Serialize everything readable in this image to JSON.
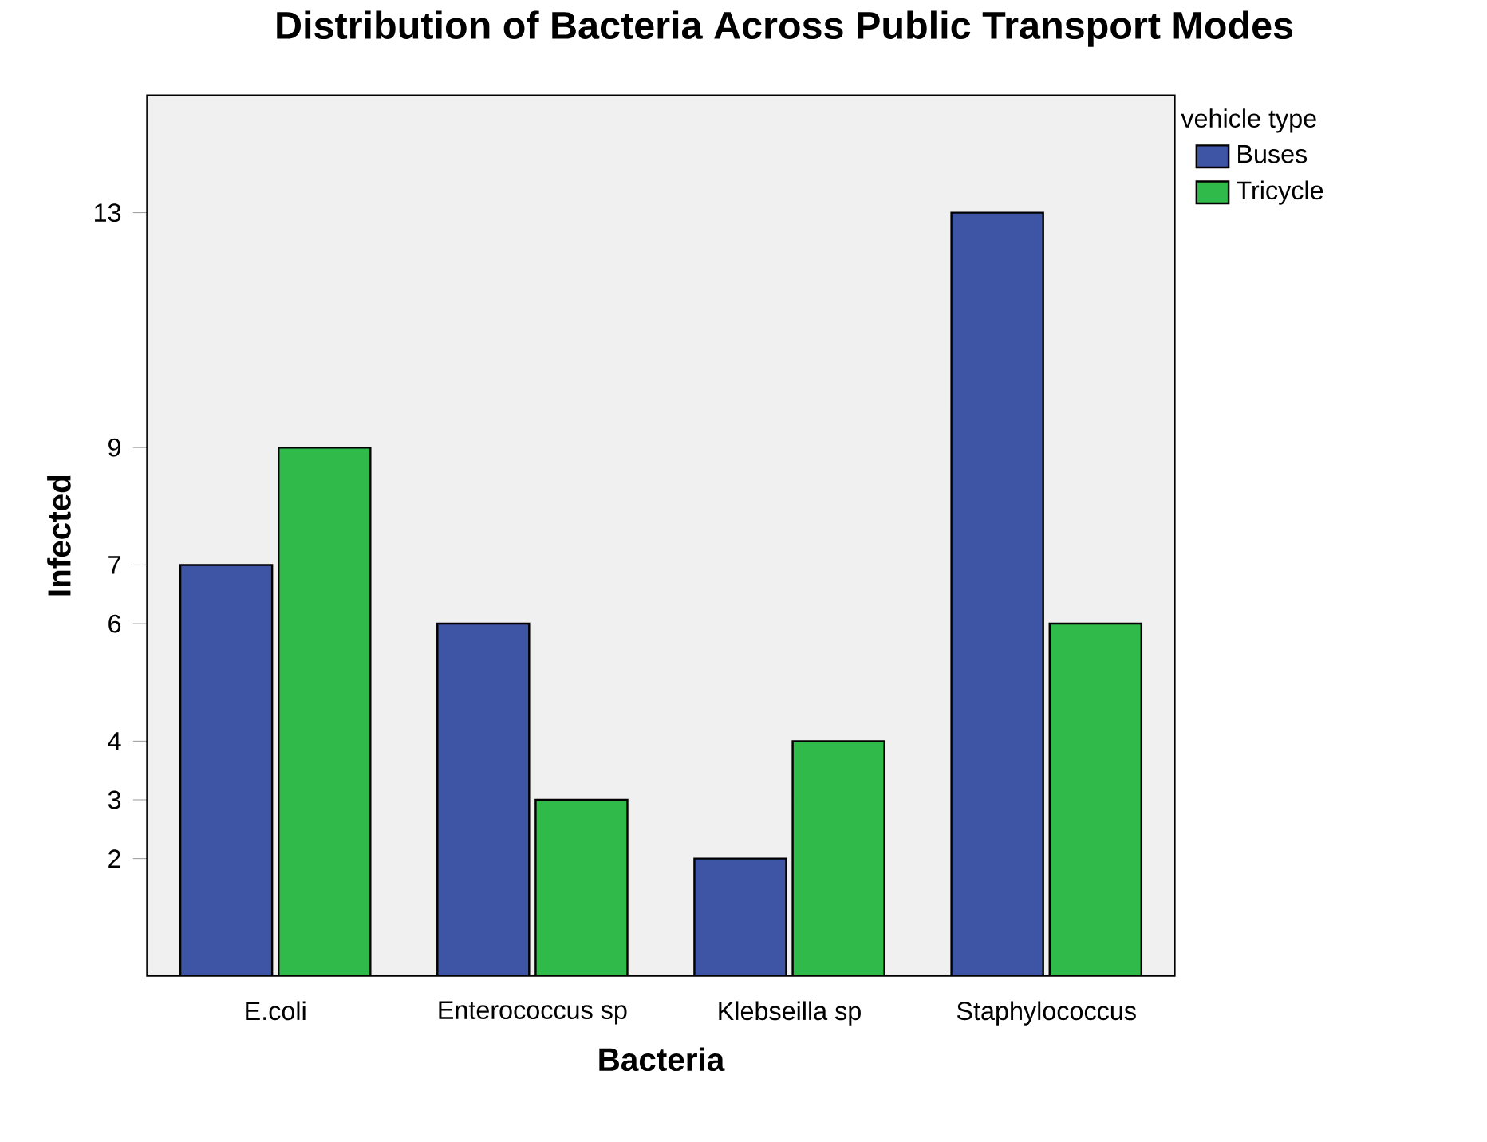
{
  "chart_data": {
    "type": "bar",
    "title": "Distribution of Bacteria Across Public Transport Modes",
    "xlabel": "Bacteria",
    "ylabel": "Infected",
    "legend_title": "vehicle type",
    "categories": [
      "E.coli",
      "Enterococcus sp",
      "Klebseilla sp",
      "Staphylococcus"
    ],
    "series": [
      {
        "name": "Buses",
        "color": "#3e55a6",
        "values": [
          7,
          6,
          2,
          13
        ]
      },
      {
        "name": "Tricycle",
        "color": "#2fba4a",
        "values": [
          9,
          3,
          4,
          6
        ]
      }
    ],
    "ylim": [
      0,
      15
    ],
    "yticks": [
      2,
      3,
      4,
      6,
      7,
      9,
      13
    ],
    "legend": "top right"
  }
}
